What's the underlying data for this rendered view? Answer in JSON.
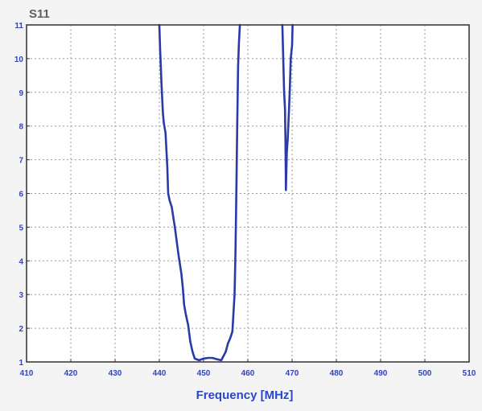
{
  "chart_data": {
    "type": "line",
    "title": "S11",
    "xlabel": "Frequency [MHz]",
    "ylabel": "",
    "xlim": [
      410,
      510
    ],
    "ylim": [
      1,
      11
    ],
    "x_ticks": [
      410,
      420,
      430,
      440,
      450,
      460,
      470,
      480,
      490,
      500,
      510
    ],
    "y_ticks": [
      1,
      2,
      3,
      4,
      5,
      6,
      7,
      8,
      9,
      10,
      11
    ],
    "grid": true,
    "grid_style": "dotted",
    "colors": {
      "line": "#2a3aa8",
      "tick_labels": "#3344bb",
      "xlabel": "#2c46c8",
      "title": "#606060",
      "background": "#ffffff",
      "grid": "#9a9a9a",
      "frame": "#333333"
    },
    "series": [
      {
        "points": [
          [
            440.0,
            11.0
          ],
          [
            440.2,
            10.2
          ],
          [
            440.5,
            9.2
          ],
          [
            440.8,
            8.4
          ],
          [
            441.0,
            8.1
          ],
          [
            441.4,
            7.8
          ],
          [
            441.8,
            6.8
          ],
          [
            442.0,
            6.0
          ],
          [
            442.3,
            5.8
          ],
          [
            442.8,
            5.6
          ],
          [
            443.5,
            5.0
          ],
          [
            444.3,
            4.2
          ],
          [
            445.0,
            3.6
          ],
          [
            445.3,
            3.2
          ],
          [
            445.6,
            2.7
          ],
          [
            446.0,
            2.4
          ],
          [
            446.5,
            2.1
          ],
          [
            447.0,
            1.6
          ],
          [
            447.5,
            1.3
          ],
          [
            448.0,
            1.1
          ],
          [
            449.0,
            1.05
          ],
          [
            450.0,
            1.1
          ],
          [
            451.0,
            1.12
          ],
          [
            452.0,
            1.12
          ],
          [
            453.0,
            1.08
          ],
          [
            454.0,
            1.05
          ],
          [
            455.0,
            1.3
          ],
          [
            455.5,
            1.55
          ],
          [
            456.0,
            1.7
          ],
          [
            456.5,
            1.9
          ],
          [
            457.0,
            3.0
          ],
          [
            457.2,
            4.2
          ],
          [
            457.4,
            6.0
          ],
          [
            457.6,
            8.0
          ],
          [
            457.8,
            9.8
          ],
          [
            458.0,
            10.5
          ],
          [
            458.2,
            11.0
          ]
        ]
      },
      {
        "points": [
          [
            467.8,
            11.0
          ],
          [
            468.0,
            10.0
          ],
          [
            468.2,
            9.0
          ],
          [
            468.4,
            8.5
          ],
          [
            468.5,
            7.5
          ],
          [
            468.6,
            6.1
          ],
          [
            468.8,
            7.2
          ],
          [
            469.0,
            7.6
          ],
          [
            469.3,
            8.5
          ],
          [
            469.5,
            9.2
          ],
          [
            469.7,
            10.0
          ],
          [
            470.0,
            10.4
          ],
          [
            470.1,
            11.0
          ]
        ]
      }
    ]
  }
}
